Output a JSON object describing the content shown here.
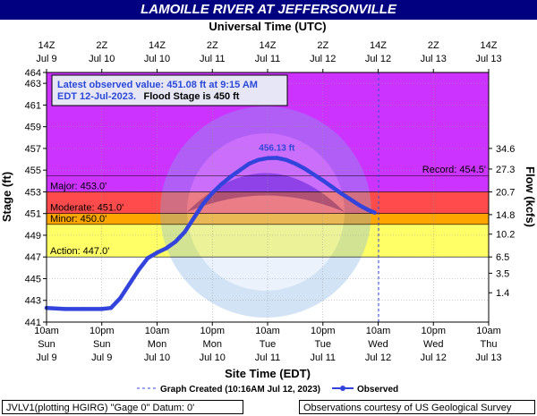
{
  "title": "LAMOILLE RIVER AT JEFFERSONVILLE",
  "chart_data": {
    "type": "line",
    "top_axis_title": "Universal Time (UTC)",
    "top_ticks": [
      {
        "l1": "14Z",
        "l2": "Jul  9"
      },
      {
        "l1": "2Z",
        "l2": "Jul 10"
      },
      {
        "l1": "14Z",
        "l2": "Jul 10"
      },
      {
        "l1": "2Z",
        "l2": "Jul 11"
      },
      {
        "l1": "14Z",
        "l2": "Jul 11"
      },
      {
        "l1": "2Z",
        "l2": "Jul 12"
      },
      {
        "l1": "14Z",
        "l2": "Jul 12"
      },
      {
        "l1": "2Z",
        "l2": "Jul 13"
      },
      {
        "l1": "14Z",
        "l2": "Jul 13"
      }
    ],
    "xlabel": "Site Time (EDT)",
    "bottom_ticks": [
      {
        "l1": "10am",
        "l2": "Sun",
        "l3": "Jul 9"
      },
      {
        "l1": "10pm",
        "l2": "Sun",
        "l3": "Jul 9"
      },
      {
        "l1": "10am",
        "l2": "Mon",
        "l3": "Jul 10"
      },
      {
        "l1": "10pm",
        "l2": "Mon",
        "l3": "Jul 10"
      },
      {
        "l1": "10am",
        "l2": "Tue",
        "l3": "Jul 11"
      },
      {
        "l1": "10pm",
        "l2": "Tue",
        "l3": "Jul 11"
      },
      {
        "l1": "10am",
        "l2": "Wed",
        "l3": "Jul 12"
      },
      {
        "l1": "10pm",
        "l2": "Wed",
        "l3": "Jul 12"
      },
      {
        "l1": "10am",
        "l2": "Thu",
        "l3": "Jul 13"
      }
    ],
    "x_hours_range": [
      0,
      96
    ],
    "ylabel": "Stage (ft)",
    "ylim": [
      441,
      464
    ],
    "y_ticks": [
      441,
      443,
      445,
      447,
      449,
      451,
      453,
      455,
      457,
      459,
      461,
      463,
      464
    ],
    "y2label": "Flow (kcfs)",
    "y2_ticks": [
      {
        "stage": 443.7,
        "label": "1.4"
      },
      {
        "stage": 445.5,
        "label": "3.5"
      },
      {
        "stage": 447.0,
        "label": "6.5"
      },
      {
        "stage": 449.1,
        "label": "10.2"
      },
      {
        "stage": 450.9,
        "label": "14.8"
      },
      {
        "stage": 453.0,
        "label": "20.7"
      },
      {
        "stage": 455.1,
        "label": "27.3"
      },
      {
        "stage": 457.0,
        "label": "34.6"
      }
    ],
    "flood_categories": [
      {
        "name": "action",
        "label": "Action: 447.0'",
        "value": 447.0,
        "color": "#ffff66"
      },
      {
        "name": "minor",
        "label": "Minor: 450.0'",
        "value": 450.0,
        "color": "#ffa500"
      },
      {
        "name": "moderate",
        "label": "Moderate: 451.0'",
        "value": 451.0,
        "color": "#ff4b4b"
      },
      {
        "name": "major",
        "label": "Major: 453.0'",
        "value": 453.0,
        "color": "#cc33ff"
      }
    ],
    "record": {
      "label": "Record: 454.5'",
      "value": 454.5
    },
    "graph_created_hour": 72.1,
    "series": [
      {
        "name": "Observed",
        "color": "#3344dd",
        "x": [
          0,
          4,
          8,
          12,
          14,
          16,
          18,
          20,
          22,
          24,
          26,
          28,
          30,
          32,
          34,
          36,
          38,
          40,
          42,
          44,
          46,
          48,
          50,
          52,
          54,
          56,
          58,
          60,
          62,
          64,
          66,
          68,
          70,
          71.25
        ],
        "y": [
          442.3,
          442.2,
          442.2,
          442.2,
          442.3,
          443.2,
          444.5,
          445.8,
          446.9,
          447.4,
          447.8,
          448.4,
          449.3,
          450.6,
          451.9,
          452.9,
          453.7,
          454.4,
          455.0,
          455.6,
          455.95,
          456.1,
          456.13,
          455.95,
          455.6,
          455.15,
          454.6,
          454.05,
          453.45,
          452.85,
          452.3,
          451.75,
          451.3,
          451.08
        ]
      }
    ],
    "peak_label": "456.13 ft",
    "peak_hour": 50
  },
  "info_box": {
    "line1": "Latest observed value: 451.08 ft at 9:15 AM",
    "line2_blue": "EDT 12-Jul-2023.",
    "line2_black": "Flood Stage is 450 ft"
  },
  "legend": {
    "graph_created": "Graph Created (10:16AM Jul 12, 2023)",
    "observed": "Observed"
  },
  "footer": {
    "left": "JVLV1(plotting HGIRG) \"Gage 0\" Datum: 0'",
    "right": "Observations courtesy of US Geological Survey"
  }
}
